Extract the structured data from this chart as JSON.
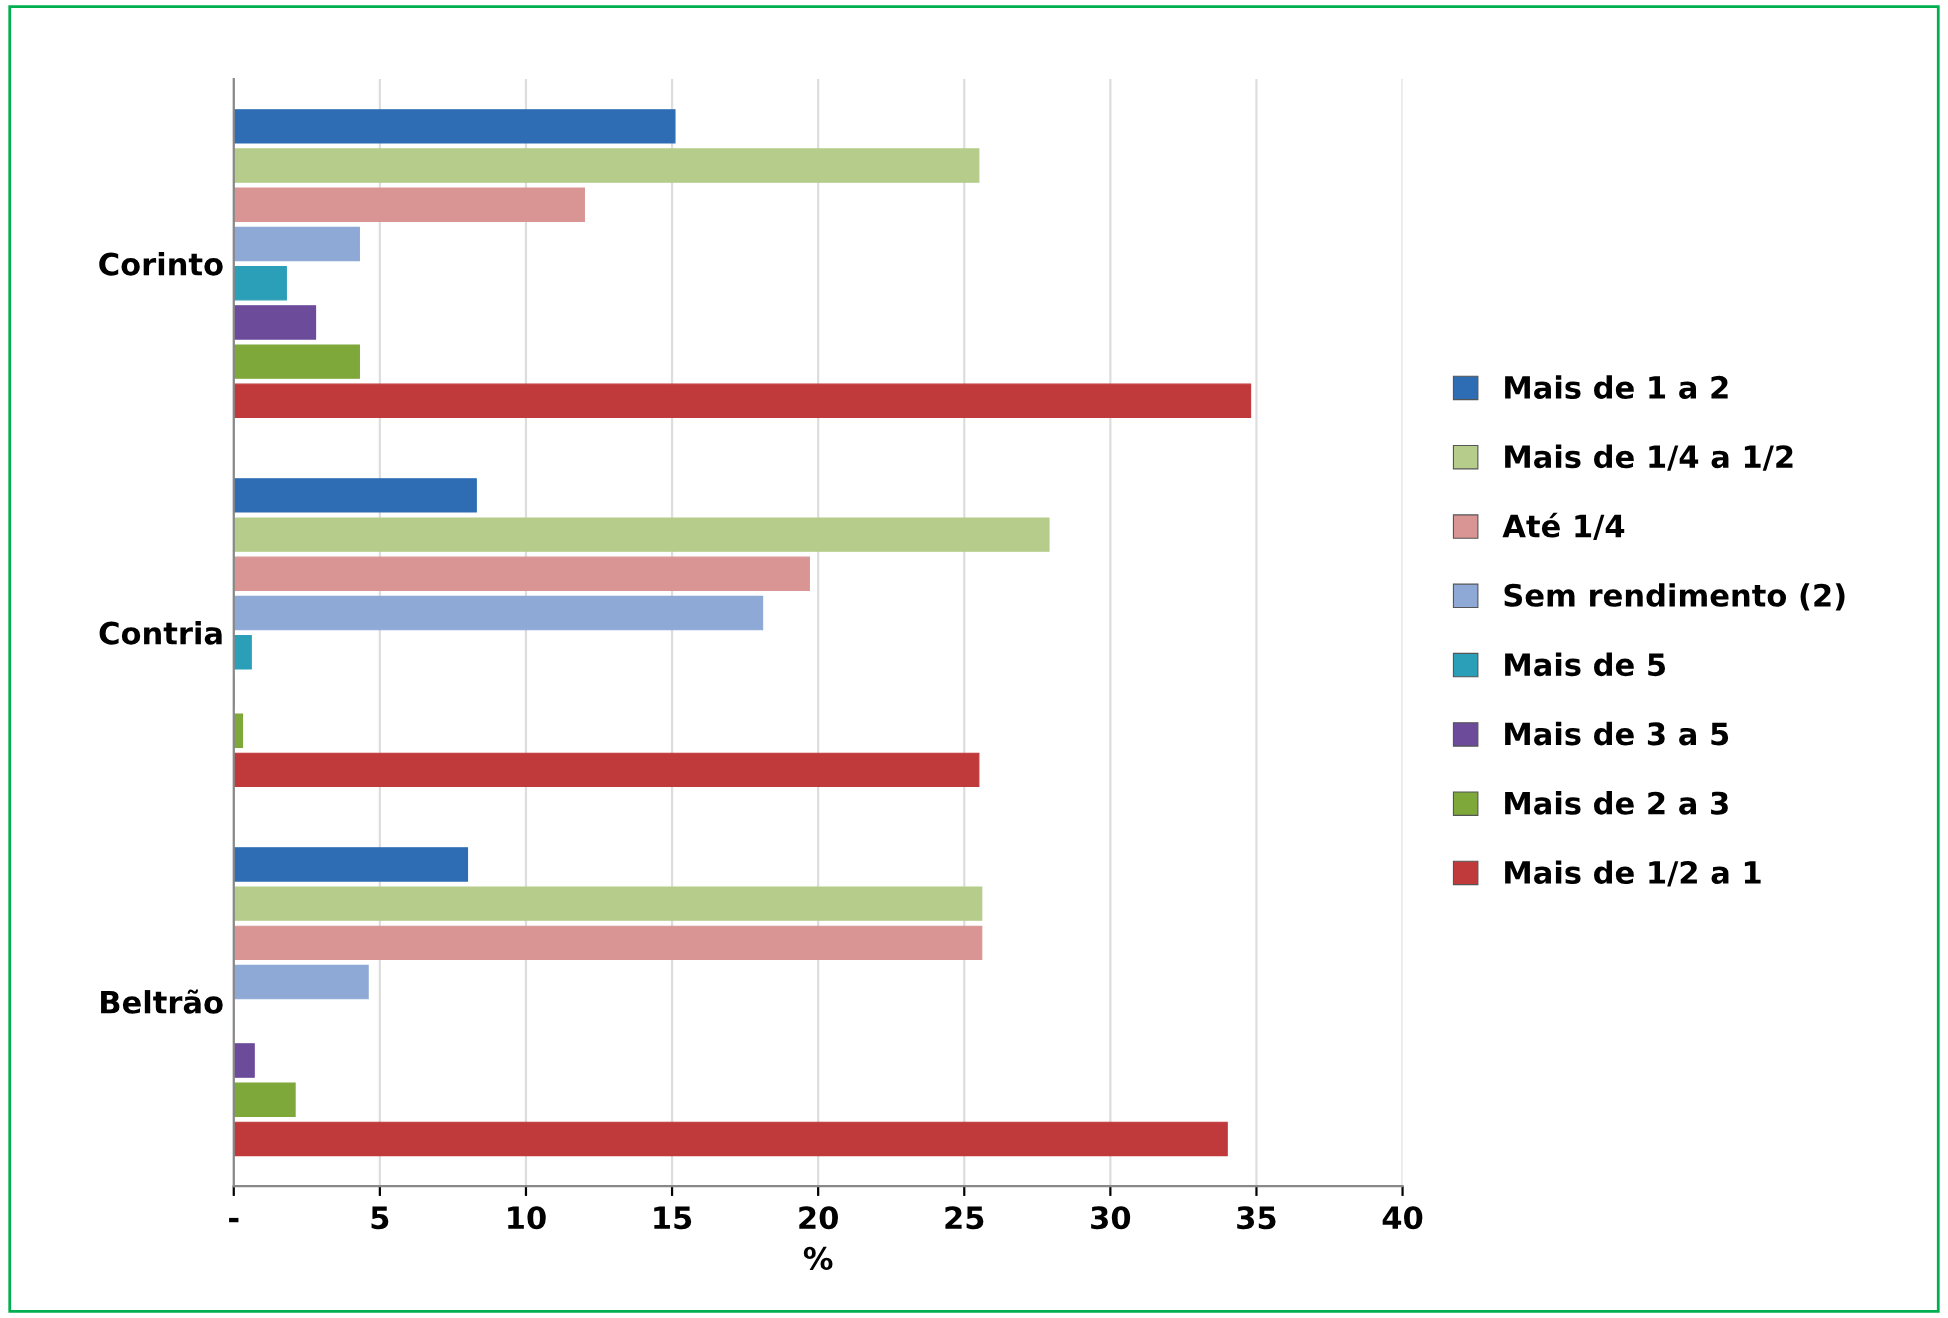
{
  "chart_data": {
    "type": "bar",
    "orientation": "horizontal",
    "xlabel": "%",
    "categories": [
      "Corinto",
      "Contria",
      "Beltrão"
    ],
    "series": [
      {
        "name": "Mais de 1 a 2",
        "color": "#2e6db4",
        "values": [
          15.1,
          8.3,
          8.0
        ]
      },
      {
        "name": "Mais de 1/4 a 1/2",
        "color": "#b5cc8a",
        "values": [
          25.5,
          27.9,
          25.6
        ]
      },
      {
        "name": "Até 1/4",
        "color": "#d99594",
        "values": [
          12.0,
          19.7,
          25.6
        ]
      },
      {
        "name": "Sem rendimento (2)",
        "color": "#8fa9d6",
        "values": [
          4.3,
          18.1,
          4.6
        ]
      },
      {
        "name": "Mais de 5",
        "color": "#2b9fb8",
        "values": [
          1.8,
          0.6,
          0
        ]
      },
      {
        "name": "Mais de 3 a 5",
        "color": "#6b4b9a",
        "values": [
          2.8,
          0,
          0.7
        ]
      },
      {
        "name": "Mais de 2 a 3",
        "color": "#7fa83a",
        "values": [
          4.3,
          0.3,
          2.1
        ]
      },
      {
        "name": "Mais de 1/2 a 1",
        "color": "#c0393b",
        "values": [
          34.8,
          25.5,
          34.0
        ]
      }
    ],
    "xlim": [
      0,
      40
    ],
    "xticks": [
      {
        "value": 0,
        "label": "-"
      },
      5,
      10,
      15,
      20,
      25,
      30,
      35,
      40
    ],
    "grid": "x",
    "legend": "right"
  }
}
